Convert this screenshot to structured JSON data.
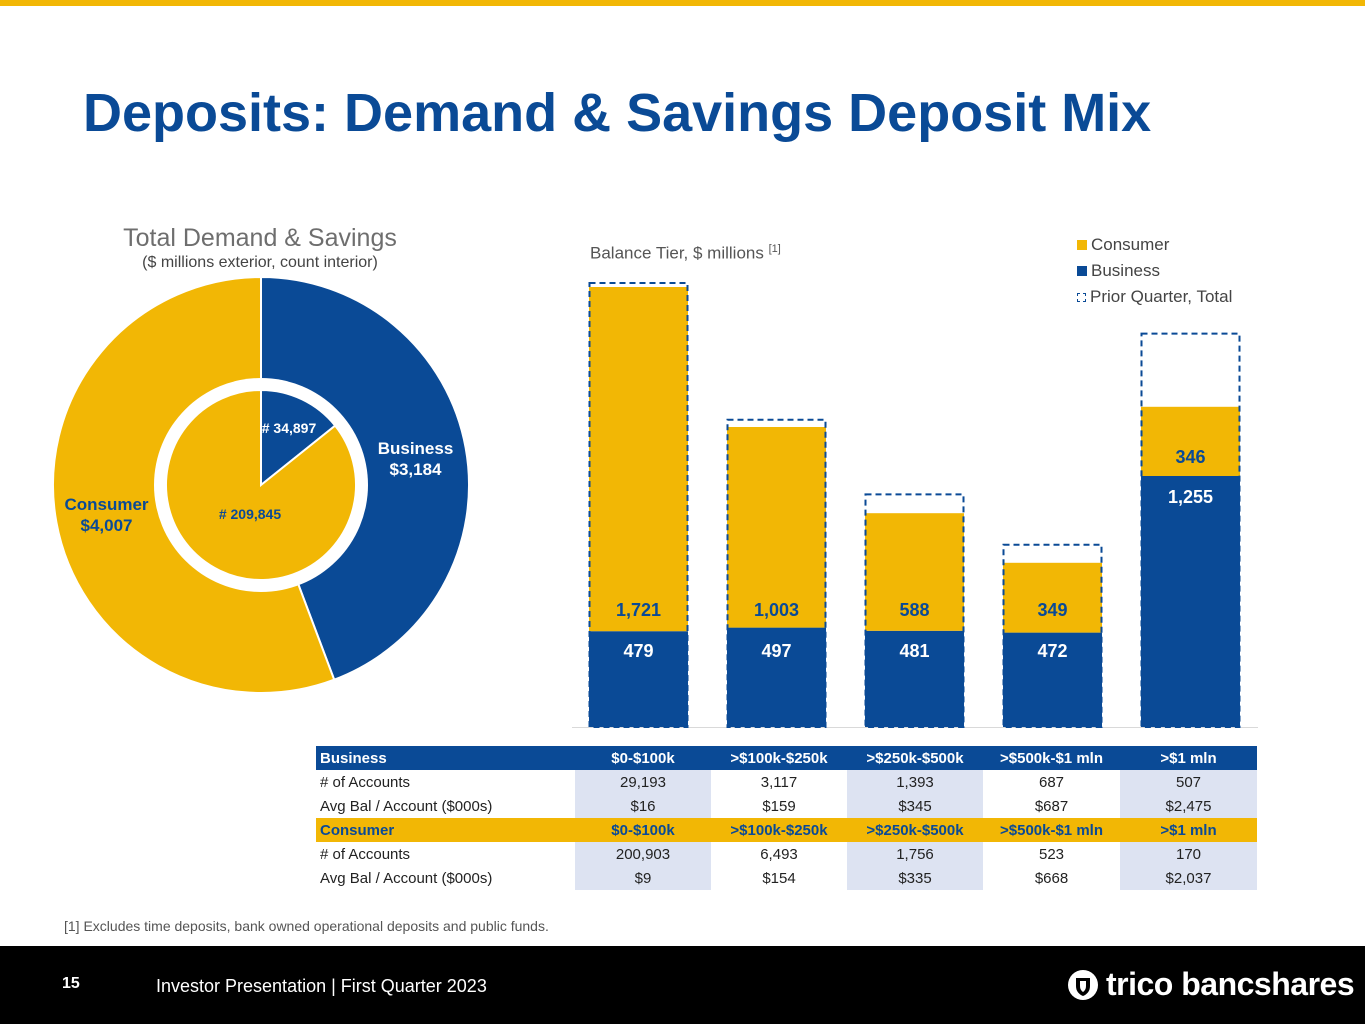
{
  "slide": {
    "title": "Deposits: Demand & Savings Deposit Mix",
    "page_number": "15",
    "footer_text": "Investor Presentation | First Quarter 2023",
    "brand": "trico bancshares",
    "footnote": "[1] Excludes time deposits, bank owned operational deposits and public funds."
  },
  "colors": {
    "consumer": "#f2b705",
    "business": "#0a4a96",
    "accent": "#f2b705",
    "title": "#0a4a96"
  },
  "chart_data": [
    {
      "type": "pie",
      "title": "Total Demand & Savings",
      "subtitle": "($ millions exterior, count interior)",
      "outer": [
        {
          "name": "Business",
          "value": 3184,
          "label": "Business",
          "value_label": "$3,184"
        },
        {
          "name": "Consumer",
          "value": 4007,
          "label": "Consumer",
          "value_label": "$4,007"
        }
      ],
      "inner": [
        {
          "name": "Business",
          "value": 34897,
          "label": "# 34,897"
        },
        {
          "name": "Consumer",
          "value": 209845,
          "label": "# 209,845"
        }
      ]
    },
    {
      "type": "bar",
      "stacked": true,
      "subtitle": "Balance Tier, $ millions",
      "footnote_ref": "[1]",
      "categories": [
        "$0-$100k",
        ">$100k-$250k",
        ">$250k-$500k",
        ">$500k-$1 mln",
        ">$1 mln"
      ],
      "series": [
        {
          "name": "Business",
          "values": [
            479,
            497,
            481,
            472,
            1255
          ],
          "labels": [
            "479",
            "497",
            "481",
            "472",
            "1,255"
          ]
        },
        {
          "name": "Consumer",
          "values": [
            1721,
            1003,
            588,
            349,
            346
          ],
          "labels": [
            "1,721",
            "1,003",
            "588",
            "349",
            "346"
          ]
        }
      ],
      "prior_quarter_total": [
        2220,
        1536,
        1163,
        911,
        1967
      ],
      "legend": [
        "Consumer",
        "Business",
        "Prior Quarter, Total"
      ],
      "legend_position": "top-right",
      "ylim": [
        0,
        2250
      ]
    }
  ],
  "table": {
    "business": {
      "header": [
        "Business",
        "$0-$100k",
        ">$100k-$250k",
        ">$250k-$500k",
        ">$500k-$1 mln",
        ">$1 mln"
      ],
      "rows": [
        [
          "# of Accounts",
          "29,193",
          "3,117",
          "1,393",
          "687",
          "507"
        ],
        [
          "Avg Bal / Account ($000s)",
          "$16",
          "$159",
          "$345",
          "$687",
          "$2,475"
        ]
      ]
    },
    "consumer": {
      "header": [
        "Consumer",
        "$0-$100k",
        ">$100k-$250k",
        ">$250k-$500k",
        ">$500k-$1 mln",
        ">$1 mln"
      ],
      "rows": [
        [
          "# of Accounts",
          "200,903",
          "6,493",
          "1,756",
          "523",
          "170"
        ],
        [
          "Avg Bal / Account ($000s)",
          "$9",
          "$154",
          "$335",
          "$668",
          "$2,037"
        ]
      ]
    }
  }
}
